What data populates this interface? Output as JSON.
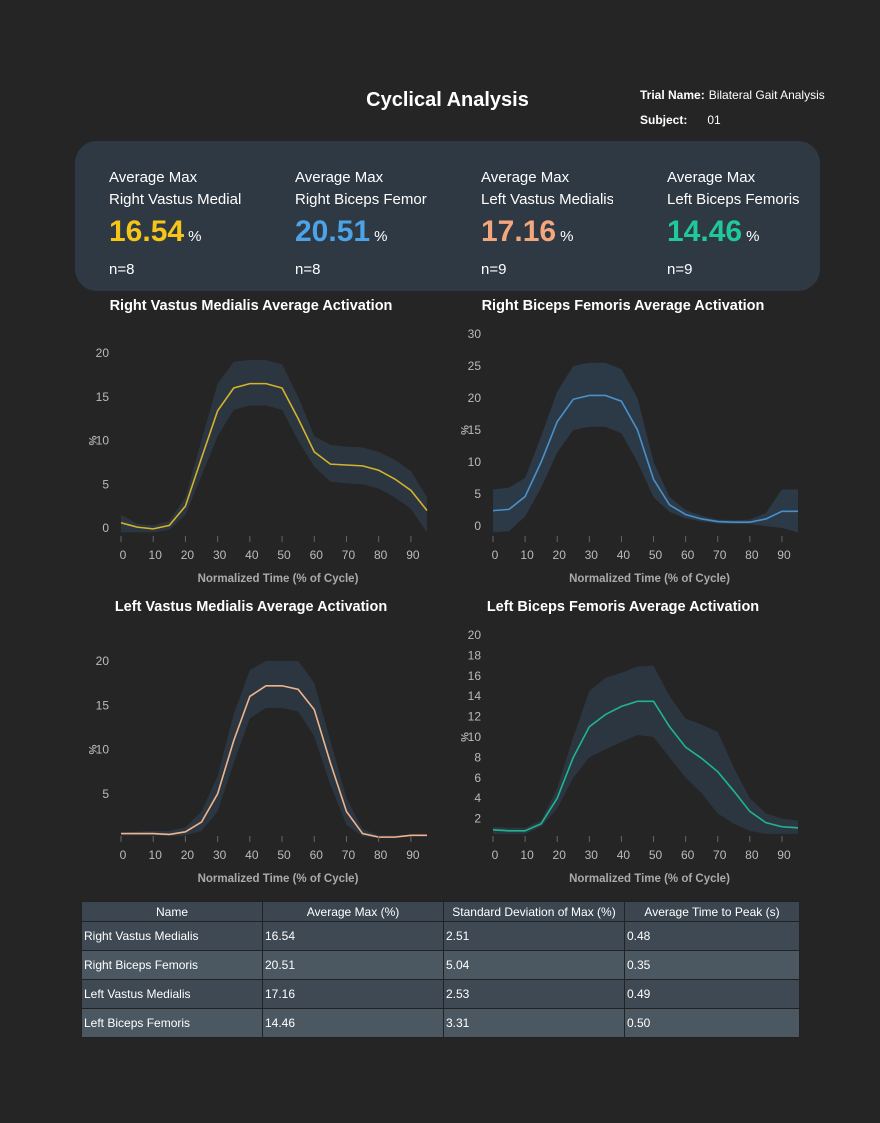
{
  "header": {
    "title": "Cyclical Analysis",
    "trial_label": "Trial Name:",
    "trial_value": "Bilateral Gait Analysis",
    "subject_label": "Subject:",
    "subject_value": "01"
  },
  "summary": [
    {
      "line1": "Average Max",
      "line2": "Right Vastus Medialis",
      "value": "16.54",
      "unit": "%",
      "n": "n=8",
      "color": "#f5c518"
    },
    {
      "line1": "Average Max",
      "line2": "Right Biceps Femoris",
      "value": "20.51",
      "unit": "%",
      "n": "n=8",
      "color": "#4da3e8"
    },
    {
      "line1": "Average Max",
      "line2": "Left Vastus Medialis",
      "value": "17.16",
      "unit": "%",
      "n": "n=9",
      "color": "#f4a67c"
    },
    {
      "line1": "Average Max",
      "line2": "Left Biceps Femoris",
      "value": "14.46",
      "unit": "%",
      "n": "n=9",
      "color": "#1fc99a"
    }
  ],
  "chart_data": [
    {
      "type": "line",
      "title": "Right Vastus Medialis Average Activation",
      "xlabel": "Normalized Time (% of Cycle)",
      "ylabel": "%",
      "color": "#d4b32a",
      "band_color": "#2e3944",
      "xlim": [
        0,
        95
      ],
      "ylim": [
        0,
        20
      ],
      "xticks": [
        0,
        10,
        20,
        30,
        40,
        50,
        60,
        70,
        80,
        90
      ],
      "yticks": [
        0,
        5,
        10,
        15,
        20
      ],
      "x": [
        0,
        5,
        10,
        15,
        20,
        25,
        30,
        35,
        40,
        45,
        50,
        55,
        60,
        65,
        70,
        75,
        80,
        85,
        90,
        95
      ],
      "mean": [
        0.6,
        0.1,
        -0.1,
        0.3,
        2.5,
        8,
        13.4,
        16,
        16.5,
        16.5,
        16,
        12.5,
        8.7,
        7.3,
        7.2,
        7.1,
        6.6,
        5.6,
        4.3,
        2
      ],
      "upper": [
        1.5,
        0.5,
        0.3,
        0.8,
        3.5,
        10,
        16.5,
        19,
        19.2,
        19.2,
        18.7,
        15,
        10.5,
        9.5,
        9.3,
        9.2,
        8.7,
        7.8,
        6.5,
        3.5
      ],
      "lower": [
        -0.5,
        -0.5,
        -0.5,
        -0.2,
        1.5,
        6,
        10.5,
        13.5,
        14,
        14,
        13.5,
        10,
        7,
        5.3,
        5.1,
        5,
        4.5,
        3.5,
        2.2,
        -0.5
      ]
    },
    {
      "type": "line",
      "title": "Right Biceps Femoris Average Activation",
      "xlabel": "Normalized Time (% of Cycle)",
      "ylabel": "%",
      "color": "#4a90c8",
      "band_color": "#2e3d4c",
      "xlim": [
        0,
        95
      ],
      "ylim": [
        0,
        30
      ],
      "xticks": [
        0,
        10,
        20,
        30,
        40,
        50,
        60,
        70,
        80,
        90
      ],
      "yticks": [
        0,
        5,
        10,
        15,
        20,
        25,
        30
      ],
      "x": [
        0,
        5,
        10,
        15,
        20,
        25,
        30,
        35,
        40,
        45,
        50,
        55,
        60,
        65,
        70,
        75,
        80,
        85,
        90,
        95
      ],
      "mean": [
        2.4,
        2.6,
        4.6,
        10,
        16.3,
        19.8,
        20.4,
        20.4,
        19.5,
        15,
        7.3,
        3.3,
        1.8,
        1.1,
        0.7,
        0.6,
        0.6,
        1.1,
        2.3,
        2.3
      ],
      "upper": [
        5.7,
        6,
        7.5,
        14,
        21,
        25,
        25.5,
        25.5,
        24.5,
        20,
        10,
        4.5,
        2.5,
        1.6,
        1,
        0.9,
        1,
        2,
        5.7,
        5.7
      ],
      "lower": [
        -1,
        -0.8,
        1.5,
        6,
        11.5,
        15,
        15.5,
        15.5,
        14.5,
        10,
        4.5,
        2.2,
        1.2,
        0.7,
        0.4,
        0.3,
        0.3,
        0,
        -0.3,
        -1
      ]
    },
    {
      "type": "line",
      "title": "Left Vastus Medialis Average Activation",
      "xlabel": "Normalized Time (% of Cycle)",
      "ylabel": "%",
      "color": "#f0b48c",
      "band_color": "#2e3944",
      "xlim": [
        0,
        95
      ],
      "ylim": [
        0,
        20
      ],
      "xticks": [
        0,
        10,
        20,
        30,
        40,
        50,
        60,
        70,
        80,
        90
      ],
      "yticks": [
        5,
        10,
        15,
        20
      ],
      "x": [
        0,
        5,
        10,
        15,
        20,
        25,
        30,
        35,
        40,
        45,
        50,
        55,
        60,
        65,
        70,
        75,
        80,
        85,
        90,
        95
      ],
      "mean": [
        0.5,
        0.5,
        0.5,
        0.4,
        0.7,
        1.8,
        5,
        11,
        16,
        17.2,
        17.2,
        16.8,
        14.5,
        8.5,
        3,
        0.5,
        0.1,
        0.1,
        0.3,
        0.3
      ],
      "upper": [
        0.6,
        0.7,
        0.8,
        0.8,
        1.2,
        3,
        7,
        14,
        19,
        20,
        20,
        20,
        17.5,
        11,
        4.5,
        1,
        0.3,
        0.3,
        0.4,
        0.4
      ],
      "lower": [
        0.3,
        0.3,
        0.3,
        0.2,
        0.3,
        0.8,
        3,
        8.5,
        13.5,
        14.7,
        14.7,
        14.3,
        11.5,
        6,
        1.5,
        0.2,
        0,
        0,
        0.2,
        0.2
      ]
    },
    {
      "type": "line",
      "title": "Left Biceps Femoris Average Activation",
      "xlabel": "Normalized Time (% of Cycle)",
      "ylabel": "%",
      "color": "#1fb58f",
      "band_color": "#2e3944",
      "xlim": [
        0,
        95
      ],
      "ylim": [
        0,
        20
      ],
      "xticks": [
        0,
        10,
        20,
        30,
        40,
        50,
        60,
        70,
        80,
        90
      ],
      "yticks": [
        2,
        4,
        6,
        8,
        10,
        12,
        14,
        16,
        18,
        20
      ],
      "x": [
        0,
        5,
        10,
        15,
        20,
        25,
        30,
        35,
        40,
        45,
        50,
        55,
        60,
        65,
        70,
        75,
        80,
        85,
        90,
        95
      ],
      "mean": [
        0.9,
        0.8,
        0.8,
        1.5,
        4,
        8,
        11,
        12.2,
        13,
        13.5,
        13.5,
        11,
        9,
        7.9,
        6.6,
        4.7,
        2.7,
        1.6,
        1.2,
        1.1
      ],
      "upper": [
        1.2,
        1.1,
        1.1,
        1.8,
        5,
        10,
        14.5,
        15.8,
        16.3,
        16.9,
        17,
        14,
        11.8,
        11.2,
        10.5,
        7,
        4,
        2.5,
        2,
        1.8
      ],
      "lower": [
        0.5,
        0.5,
        0.5,
        1.2,
        3,
        6,
        8,
        8.8,
        9.5,
        10.2,
        10,
        8,
        6,
        4.5,
        2.5,
        1.5,
        0.8,
        0.5,
        0.5,
        0.5
      ]
    }
  ],
  "table": {
    "headers": [
      "Name",
      "Average Max (%)",
      "Standard Deviation of Max (%)",
      "Average Time to Peak (s)"
    ],
    "rows": [
      [
        "Right Vastus Medialis",
        "16.54",
        "2.51",
        "0.48"
      ],
      [
        "Right Biceps Femoris",
        "20.51",
        "5.04",
        "0.35"
      ],
      [
        "Left Vastus Medialis",
        "17.16",
        "2.53",
        "0.49"
      ],
      [
        "Left Biceps Femoris",
        "14.46",
        "3.31",
        "0.50"
      ]
    ]
  }
}
